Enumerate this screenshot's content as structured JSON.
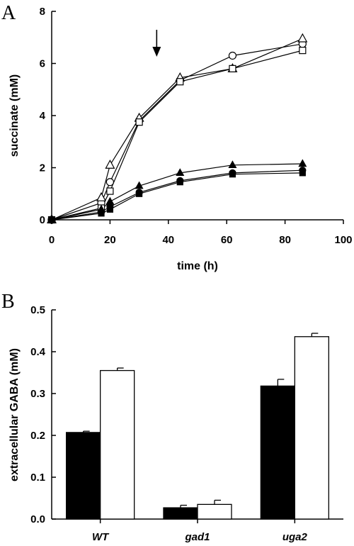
{
  "chart_data": [
    {
      "panel": "A",
      "type": "line",
      "xlabel": "time (h)",
      "ylabel": "succinate (mM)",
      "xlim": [
        0,
        100
      ],
      "ylim": [
        0,
        8
      ],
      "xticks": [
        0,
        20,
        40,
        60,
        80,
        100
      ],
      "yticks": [
        0,
        2,
        4,
        6,
        8
      ],
      "grid": false,
      "annotation": {
        "type": "arrow",
        "x": 36,
        "points": "down"
      },
      "series": [
        {
          "marker": "open-circle",
          "x": [
            0,
            17,
            20,
            30,
            44,
            62,
            86
          ],
          "y": [
            0,
            0.65,
            1.45,
            3.8,
            5.35,
            6.3,
            6.75
          ]
        },
        {
          "marker": "open-triangle",
          "x": [
            0,
            17,
            20,
            30,
            44,
            62,
            86
          ],
          "y": [
            0,
            0.85,
            2.1,
            3.9,
            5.45,
            5.8,
            6.95
          ]
        },
        {
          "marker": "open-square",
          "x": [
            0,
            17,
            20,
            30,
            44,
            62,
            86
          ],
          "y": [
            0,
            0.45,
            1.1,
            3.75,
            5.3,
            5.8,
            6.5
          ]
        },
        {
          "marker": "filled-triangle",
          "x": [
            0,
            17,
            20,
            30,
            44,
            62,
            86
          ],
          "y": [
            0,
            0.4,
            0.7,
            1.3,
            1.8,
            2.1,
            2.15
          ]
        },
        {
          "marker": "filled-circle",
          "x": [
            0,
            17,
            20,
            30,
            44,
            62,
            86
          ],
          "y": [
            0,
            0.3,
            0.5,
            1.05,
            1.5,
            1.8,
            1.9
          ]
        },
        {
          "marker": "filled-square",
          "x": [
            0,
            17,
            20,
            30,
            44,
            62,
            86
          ],
          "y": [
            0,
            0.25,
            0.4,
            1.0,
            1.45,
            1.75,
            1.8
          ]
        }
      ]
    },
    {
      "panel": "B",
      "type": "bar",
      "xlabel": "",
      "ylabel": "extracellular GABA (mM)",
      "ylim": [
        0,
        0.5
      ],
      "yticks": [
        0.0,
        0.1,
        0.2,
        0.3,
        0.4,
        0.5
      ],
      "categories": [
        "WT",
        "gad1",
        "uga2"
      ],
      "grid": false,
      "series": [
        {
          "fill": "black",
          "values": [
            0.207,
            0.027,
            0.318
          ],
          "errors": [
            0.003,
            0.006,
            0.016
          ]
        },
        {
          "fill": "white",
          "values": [
            0.355,
            0.035,
            0.436
          ],
          "errors": [
            0.006,
            0.01,
            0.008
          ]
        }
      ]
    }
  ],
  "colors": {
    "ink": "#000000",
    "background": "#ffffff"
  }
}
